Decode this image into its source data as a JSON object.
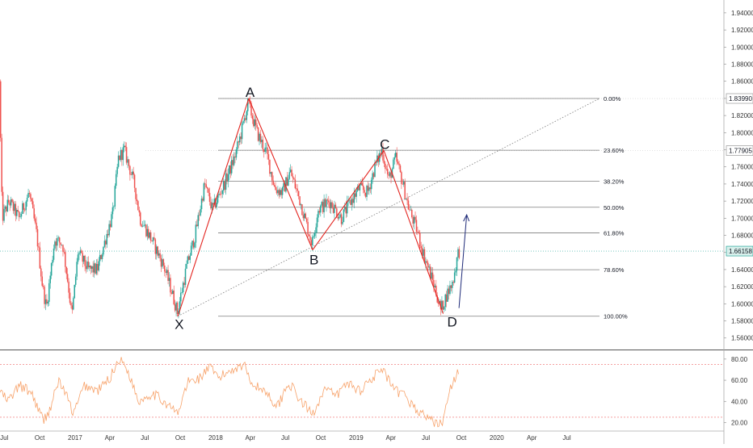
{
  "colors": {
    "up": "#26a69a",
    "down": "#ef5350",
    "pattern": "#e3231e",
    "fib": "#7d7d7d",
    "rsi": "#f7a26a",
    "rsi_band": "#f08080",
    "arrow": "#1e2a78",
    "axis_text": "#333333",
    "price_line": "#26a69a"
  },
  "chart_data": [
    {
      "type": "candlestick",
      "title": "",
      "y_range": [
        1.5475,
        1.955
      ],
      "y_tick_labels": [
        "1.56000",
        "1.58000",
        "1.60000",
        "1.62000",
        "1.64000",
        "1.66000",
        "1.68000",
        "1.70000",
        "1.72000",
        "1.74000",
        "1.76000",
        "1.78000",
        "1.80000",
        "1.82000",
        "1.84000",
        "1.86000",
        "1.88000",
        "1.90000",
        "1.92000",
        "1.94000"
      ],
      "x_tick_labels": [
        "Jul",
        "Oct",
        "2017",
        "Apr",
        "Jul",
        "Oct",
        "2018",
        "Apr",
        "Jul",
        "Oct",
        "2019",
        "Apr",
        "Jul",
        "Oct",
        "2020",
        "Apr",
        "Jul"
      ],
      "price_path": [
        [
          "2016-06-20",
          1.86
        ],
        [
          "2016-06-27",
          1.7
        ],
        [
          "2016-07-15",
          1.72
        ],
        [
          "2016-08-10",
          1.7
        ],
        [
          "2016-09-05",
          1.73
        ],
        [
          "2016-09-25",
          1.68
        ],
        [
          "2016-10-10",
          1.62
        ],
        [
          "2016-10-20",
          1.595
        ],
        [
          "2016-11-10",
          1.675
        ],
        [
          "2016-12-01",
          1.67
        ],
        [
          "2016-12-15",
          1.625
        ],
        [
          "2016-12-25",
          1.585
        ],
        [
          "2017-01-10",
          1.66
        ],
        [
          "2017-02-05",
          1.64
        ],
        [
          "2017-03-01",
          1.64
        ],
        [
          "2017-03-25",
          1.68
        ],
        [
          "2017-04-10",
          1.705
        ],
        [
          "2017-04-25",
          1.77
        ],
        [
          "2017-05-10",
          1.78
        ],
        [
          "2017-06-05",
          1.74
        ],
        [
          "2017-06-20",
          1.7
        ],
        [
          "2017-07-20",
          1.675
        ],
        [
          "2017-08-20",
          1.645
        ],
        [
          "2017-09-10",
          1.615
        ],
        [
          "2017-09-25",
          1.59
        ],
        [
          "2017-10-20",
          1.645
        ],
        [
          "2017-11-10",
          1.68
        ],
        [
          "2017-12-05",
          1.74
        ],
        [
          "2017-12-25",
          1.71
        ],
        [
          "2018-01-25",
          1.74
        ],
        [
          "2018-02-20",
          1.77
        ],
        [
          "2018-03-10",
          1.8
        ],
        [
          "2018-03-28",
          1.835
        ],
        [
          "2018-04-20",
          1.8
        ],
        [
          "2018-05-15",
          1.775
        ],
        [
          "2018-06-05",
          1.735
        ],
        [
          "2018-06-25",
          1.73
        ],
        [
          "2018-07-15",
          1.755
        ],
        [
          "2018-08-10",
          1.72
        ],
        [
          "2018-08-25",
          1.695
        ],
        [
          "2018-09-10",
          1.67
        ],
        [
          "2018-09-25",
          1.71
        ],
        [
          "2018-10-25",
          1.72
        ],
        [
          "2018-11-25",
          1.7
        ],
        [
          "2018-12-20",
          1.72
        ],
        [
          "2019-01-10",
          1.735
        ],
        [
          "2019-02-01",
          1.73
        ],
        [
          "2019-02-20",
          1.76
        ],
        [
          "2019-03-10",
          1.78
        ],
        [
          "2019-03-28",
          1.745
        ],
        [
          "2019-04-15",
          1.77
        ],
        [
          "2019-05-01",
          1.745
        ],
        [
          "2019-05-20",
          1.71
        ],
        [
          "2019-06-10",
          1.685
        ],
        [
          "2019-06-25",
          1.66
        ],
        [
          "2019-07-10",
          1.64
        ],
        [
          "2019-07-25",
          1.62
        ],
        [
          "2019-08-10",
          1.593
        ],
        [
          "2019-08-25",
          1.61
        ],
        [
          "2019-09-10",
          1.625
        ],
        [
          "2019-09-25",
          1.6615
        ]
      ],
      "pattern_points": [
        {
          "label": "X",
          "date": "2017-09-25",
          "price": 1.5855
        },
        {
          "label": "A",
          "date": "2018-03-28",
          "price": 1.8399
        },
        {
          "label": "B",
          "date": "2018-09-10",
          "price": 1.663
        },
        {
          "label": "C",
          "date": "2019-03-14",
          "price": 1.779
        },
        {
          "label": "D",
          "date": "2019-08-15",
          "price": 1.5885
        }
      ],
      "fib_levels": [
        {
          "label": "0.00%",
          "price": 1.8399
        },
        {
          "label": "23.60%",
          "price": 1.7794
        },
        {
          "label": "38.20%",
          "price": 1.7432
        },
        {
          "label": "50.00%",
          "price": 1.7128
        },
        {
          "label": "61.80%",
          "price": 1.6828
        },
        {
          "label": "78.60%",
          "price": 1.6398
        },
        {
          "label": "100.00%",
          "price": 1.5855
        }
      ],
      "projection": {
        "from": [
          "2019-09-25",
          1.595
        ],
        "to": [
          "2019-10-15",
          1.704
        ]
      },
      "last_price": "1.66158",
      "price_tags": [
        "1.83990",
        "1.77905",
        "1.66158"
      ]
    },
    {
      "type": "line",
      "title": "",
      "y_range": [
        15,
        86
      ],
      "y_tick_labels": [
        "20.00",
        "40.00",
        "60.00",
        "80.00"
      ],
      "bands": [
        75,
        25
      ],
      "rsi_path": [
        [
          "2016-06-20",
          50
        ],
        [
          "2016-07-10",
          40
        ],
        [
          "2016-08-10",
          55
        ],
        [
          "2016-09-10",
          48
        ],
        [
          "2016-10-10",
          22
        ],
        [
          "2016-10-25",
          30
        ],
        [
          "2016-11-20",
          60
        ],
        [
          "2016-12-10",
          45
        ],
        [
          "2016-12-28",
          28
        ],
        [
          "2017-01-25",
          55
        ],
        [
          "2017-03-01",
          50
        ],
        [
          "2017-04-01",
          62
        ],
        [
          "2017-04-25",
          80
        ],
        [
          "2017-05-15",
          72
        ],
        [
          "2017-06-15",
          40
        ],
        [
          "2017-07-20",
          48
        ],
        [
          "2017-08-20",
          40
        ],
        [
          "2017-09-25",
          28
        ],
        [
          "2017-10-20",
          58
        ],
        [
          "2017-11-20",
          62
        ],
        [
          "2017-12-15",
          72
        ],
        [
          "2018-01-10",
          62
        ],
        [
          "2018-02-10",
          70
        ],
        [
          "2018-03-15",
          75
        ],
        [
          "2018-04-10",
          55
        ],
        [
          "2018-05-10",
          50
        ],
        [
          "2018-06-10",
          35
        ],
        [
          "2018-07-10",
          58
        ],
        [
          "2018-08-10",
          40
        ],
        [
          "2018-09-10",
          28
        ],
        [
          "2018-10-10",
          52
        ],
        [
          "2018-11-10",
          45
        ],
        [
          "2018-12-10",
          58
        ],
        [
          "2019-01-10",
          50
        ],
        [
          "2019-02-10",
          62
        ],
        [
          "2019-03-10",
          70
        ],
        [
          "2019-04-10",
          50
        ],
        [
          "2019-05-10",
          45
        ],
        [
          "2019-06-10",
          30
        ],
        [
          "2019-07-10",
          25
        ],
        [
          "2019-07-25",
          18
        ],
        [
          "2019-08-15",
          22
        ],
        [
          "2019-09-05",
          55
        ],
        [
          "2019-09-25",
          68
        ]
      ]
    }
  ]
}
